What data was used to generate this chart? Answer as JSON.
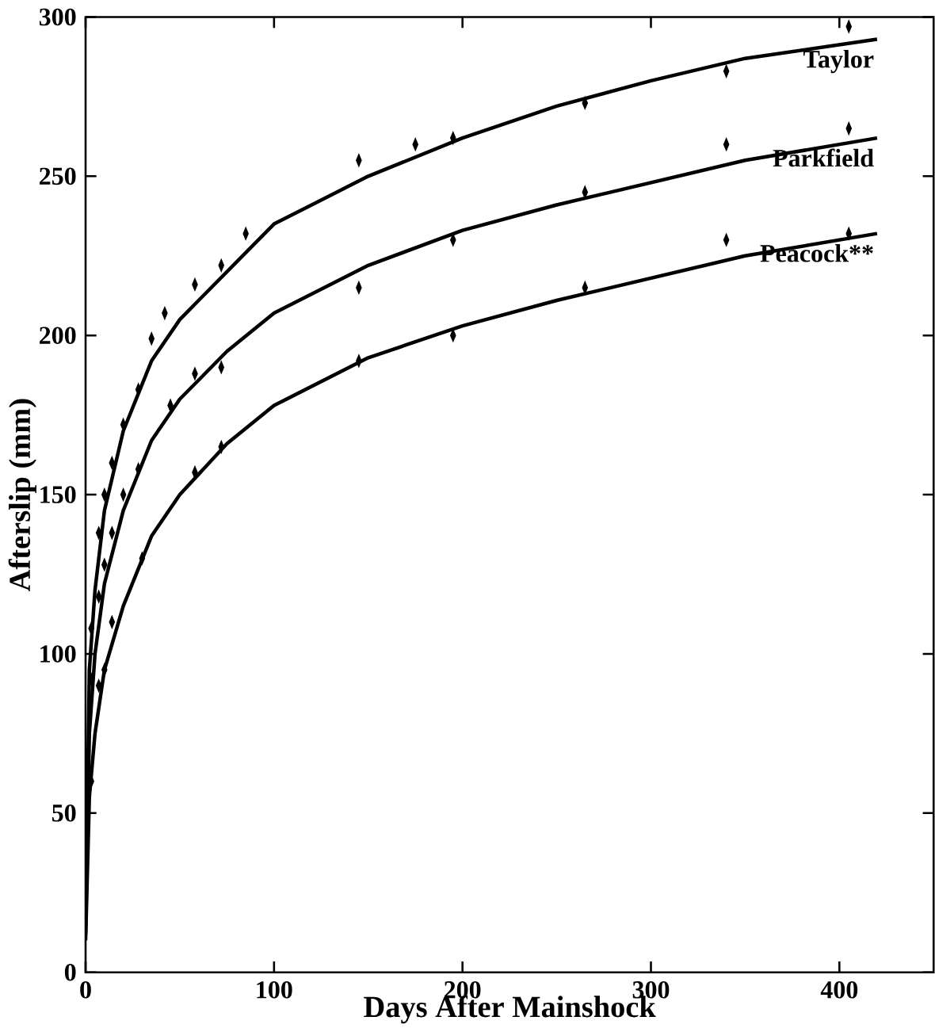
{
  "chart_data": {
    "type": "line",
    "xlabel": "Days After Mainshock",
    "ylabel": "Afterslip (mm)",
    "xlim": [
      0,
      450
    ],
    "ylim": [
      0,
      300
    ],
    "xticks": [
      0,
      100,
      200,
      300,
      400
    ],
    "yticks": [
      0,
      50,
      100,
      150,
      200,
      250,
      300
    ],
    "grid": false,
    "series": [
      {
        "name": "Taylor",
        "color": "#000000",
        "marker": "none",
        "x": [
          0,
          2,
          5,
          10,
          20,
          35,
          50,
          75,
          100,
          150,
          200,
          250,
          300,
          350,
          420
        ],
        "values": [
          15,
          95,
          120,
          145,
          170,
          192,
          205,
          220,
          235,
          250,
          262,
          272,
          280,
          287,
          293
        ]
      },
      {
        "name": "Parkfield",
        "color": "#000000",
        "marker": "none",
        "x": [
          0,
          2,
          5,
          10,
          20,
          35,
          50,
          75,
          100,
          150,
          200,
          250,
          300,
          350,
          420
        ],
        "values": [
          12,
          75,
          100,
          122,
          145,
          167,
          180,
          195,
          207,
          222,
          233,
          241,
          248,
          255,
          262
        ]
      },
      {
        "name": "Peacock**",
        "color": "#000000",
        "marker": "none",
        "x": [
          0,
          2,
          5,
          10,
          20,
          35,
          50,
          75,
          100,
          150,
          200,
          250,
          300,
          350,
          420
        ],
        "values": [
          10,
          55,
          75,
          95,
          115,
          137,
          150,
          166,
          178,
          193,
          203,
          211,
          218,
          225,
          232
        ]
      },
      {
        "type": "scatter",
        "color": "#000000",
        "marker": "diamond",
        "x": [
          3,
          7,
          10,
          14,
          20,
          28,
          35,
          42,
          58,
          72,
          85,
          145,
          175,
          195,
          265,
          340,
          405
        ],
        "values": [
          108,
          138,
          150,
          160,
          172,
          183,
          199,
          207,
          216,
          222,
          232,
          255,
          260,
          262,
          273,
          283,
          297
        ]
      },
      {
        "type": "scatter",
        "color": "#000000",
        "marker": "diamond",
        "x": [
          3,
          7,
          10,
          14,
          20,
          28,
          45,
          58,
          72,
          145,
          195,
          265,
          340,
          405
        ],
        "values": [
          92,
          118,
          128,
          138,
          150,
          158,
          178,
          188,
          190,
          215,
          230,
          245,
          260,
          265
        ]
      },
      {
        "type": "scatter",
        "color": "#000000",
        "marker": "diamond",
        "x": [
          3,
          7,
          10,
          14,
          30,
          58,
          72,
          145,
          195,
          265,
          340,
          405
        ],
        "values": [
          60,
          90,
          95,
          110,
          130,
          157,
          165,
          192,
          200,
          215,
          230,
          232
        ]
      }
    ]
  }
}
